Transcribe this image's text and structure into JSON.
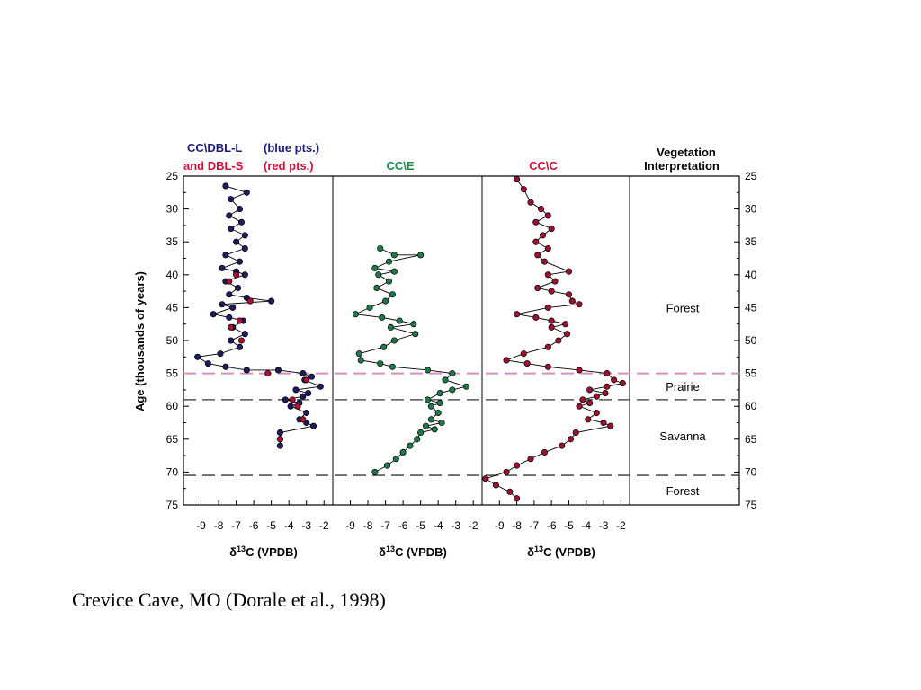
{
  "caption": "Crevice Cave, MO (Dorale et al., 1998)",
  "colors": {
    "blue_series": "#1c1c5e",
    "red_series": "#b01030",
    "green_series": "#1e7a4a",
    "crimson_series": "#9c1030",
    "pink_boundary": "#d890c0",
    "dashed_boundary": "#555555",
    "green_title": "#15904a",
    "red_title": "#d0103a",
    "blue_title": "#1a1a7a"
  },
  "header": {
    "panel1_line1": "CC\\DBL-L",
    "panel1_line1_note": "(blue pts.)",
    "panel1_line2": "and DBL-S",
    "panel1_line2_note": "(red pts.)",
    "panel2": "CC\\E",
    "panel3": "CC\\C",
    "veg_line1": "Vegetation",
    "veg_line2": "Interpretation"
  },
  "axis": {
    "y_label": "Age (thousands of years)",
    "x_label_prefix": "δ",
    "x_label_sup": "13",
    "x_label_suffix": "C (VPDB)"
  },
  "chart_data": {
    "type": "scatter",
    "ylim": [
      25,
      75
    ],
    "y_inverted": true,
    "xlim": [
      -10,
      -1.5
    ],
    "x_ticks": [
      -9,
      -8,
      -7,
      -6,
      -5,
      -4,
      -3,
      -2
    ],
    "y_ticks": [
      25,
      30,
      35,
      40,
      45,
      50,
      55,
      60,
      65,
      70,
      75
    ],
    "boundaries": [
      {
        "age": 55,
        "style": "pink-dashed"
      },
      {
        "age": 59,
        "style": "gray-dashed"
      },
      {
        "age": 70.5,
        "style": "gray-dashed"
      }
    ],
    "vegetation_zones": [
      {
        "label": "Forest",
        "age": 45
      },
      {
        "label": "Prairie",
        "age": 57
      },
      {
        "label": "Savanna",
        "age": 64.5
      },
      {
        "label": "Forest",
        "age": 72.8
      }
    ],
    "panels": [
      {
        "series": [
          {
            "color_key": "blue_series",
            "points": [
              [
                -7.6,
                26.5
              ],
              [
                -6.4,
                27.5
              ],
              [
                -7.3,
                28.5
              ],
              [
                -6.8,
                30
              ],
              [
                -7.4,
                31
              ],
              [
                -6.7,
                32
              ],
              [
                -7.3,
                33
              ],
              [
                -6.5,
                34
              ],
              [
                -7.0,
                35
              ],
              [
                -6.5,
                36
              ],
              [
                -7.6,
                37
              ],
              [
                -6.8,
                38
              ],
              [
                -7.8,
                39
              ],
              [
                -7.0,
                39.5
              ],
              [
                -6.5,
                40
              ],
              [
                -7.6,
                41
              ],
              [
                -6.9,
                42
              ],
              [
                -7.4,
                43
              ],
              [
                -6.4,
                43.5
              ],
              [
                -5.0,
                44
              ],
              [
                -7.8,
                44.5
              ],
              [
                -7.2,
                45
              ],
              [
                -8.3,
                46
              ],
              [
                -7.4,
                46.5
              ],
              [
                -6.6,
                47
              ],
              [
                -7.2,
                48
              ],
              [
                -6.5,
                49
              ],
              [
                -7.3,
                50
              ],
              [
                -6.8,
                51
              ],
              [
                -7.9,
                52
              ],
              [
                -9.2,
                52.5
              ],
              [
                -8.6,
                53.5
              ],
              [
                -7.6,
                54
              ],
              [
                -6.4,
                54.5
              ],
              [
                -4.6,
                54.5
              ],
              [
                -3.2,
                55
              ],
              [
                -2.7,
                55.5
              ],
              [
                -3.1,
                56
              ],
              [
                -2.2,
                57
              ],
              [
                -3.6,
                57.5
              ],
              [
                -2.9,
                58
              ],
              [
                -3.2,
                58.5
              ],
              [
                -4.2,
                59
              ],
              [
                -3.4,
                59.5
              ],
              [
                -3.9,
                60
              ],
              [
                -3.0,
                61
              ],
              [
                -3.4,
                62
              ],
              [
                -3.0,
                62.5
              ],
              [
                -2.6,
                63
              ],
              [
                -4.5,
                64
              ],
              [
                -4.5,
                65
              ],
              [
                -4.5,
                66
              ]
            ]
          },
          {
            "color_key": "red_series",
            "points": [
              [
                -7.0,
                40
              ],
              [
                -7.4,
                41
              ],
              [
                -6.8,
                47
              ],
              [
                -6.2,
                44
              ],
              [
                -7.3,
                48
              ],
              [
                -6.7,
                50
              ],
              [
                -5.2,
                55
              ],
              [
                -3.0,
                56
              ],
              [
                -3.8,
                59
              ],
              [
                -3.5,
                60
              ],
              [
                -3.2,
                62
              ],
              [
                -4.5,
                65
              ]
            ]
          }
        ]
      },
      {
        "series": [
          {
            "color_key": "green_series",
            "points": [
              [
                -7.3,
                36
              ],
              [
                -6.5,
                37
              ],
              [
                -5.0,
                37
              ],
              [
                -6.8,
                38
              ],
              [
                -7.6,
                39
              ],
              [
                -6.5,
                39.5
              ],
              [
                -7.4,
                40
              ],
              [
                -6.8,
                41
              ],
              [
                -7.5,
                42
              ],
              [
                -6.6,
                43
              ],
              [
                -7.0,
                44
              ],
              [
                -7.9,
                45
              ],
              [
                -8.7,
                46
              ],
              [
                -7.2,
                46.5
              ],
              [
                -6.2,
                47
              ],
              [
                -5.4,
                47.5
              ],
              [
                -6.7,
                48
              ],
              [
                -5.3,
                49
              ],
              [
                -6.5,
                50
              ],
              [
                -7.1,
                51
              ],
              [
                -8.5,
                52
              ],
              [
                -8.4,
                53
              ],
              [
                -7.3,
                53.5
              ],
              [
                -6.6,
                54
              ],
              [
                -4.6,
                54.5
              ],
              [
                -3.2,
                55
              ],
              [
                -3.6,
                56
              ],
              [
                -2.4,
                57
              ],
              [
                -3.2,
                57.5
              ],
              [
                -3.9,
                58
              ],
              [
                -4.6,
                59
              ],
              [
                -3.9,
                59.5
              ],
              [
                -4.4,
                60
              ],
              [
                -4.0,
                61
              ],
              [
                -4.4,
                62
              ],
              [
                -3.8,
                62.5
              ],
              [
                -4.7,
                63
              ],
              [
                -4.2,
                63.5
              ],
              [
                -5.0,
                64
              ],
              [
                -5.2,
                65
              ],
              [
                -5.6,
                66
              ],
              [
                -6.0,
                67
              ],
              [
                -6.4,
                68
              ],
              [
                -6.9,
                69
              ],
              [
                -7.6,
                70
              ]
            ]
          }
        ]
      },
      {
        "series": [
          {
            "color_key": "crimson_series",
            "points": [
              [
                -8.0,
                25.5
              ],
              [
                -7.6,
                27
              ],
              [
                -7.2,
                29
              ],
              [
                -6.6,
                30
              ],
              [
                -6.2,
                31
              ],
              [
                -6.9,
                32
              ],
              [
                -6.0,
                33
              ],
              [
                -6.5,
                34
              ],
              [
                -6.9,
                35
              ],
              [
                -6.2,
                36
              ],
              [
                -6.8,
                37
              ],
              [
                -6.4,
                38
              ],
              [
                -5.0,
                39.5
              ],
              [
                -6.2,
                40
              ],
              [
                -5.8,
                41
              ],
              [
                -6.8,
                42
              ],
              [
                -6.0,
                42.5
              ],
              [
                -5.0,
                43
              ],
              [
                -4.8,
                44
              ],
              [
                -4.4,
                44.5
              ],
              [
                -6.2,
                45
              ],
              [
                -8.0,
                46
              ],
              [
                -6.9,
                46.5
              ],
              [
                -6.0,
                47
              ],
              [
                -5.2,
                47.5
              ],
              [
                -6.0,
                48
              ],
              [
                -5.1,
                49
              ],
              [
                -5.6,
                50
              ],
              [
                -6.2,
                51
              ],
              [
                -7.6,
                52
              ],
              [
                -8.6,
                53
              ],
              [
                -7.4,
                53.5
              ],
              [
                -6.2,
                54
              ],
              [
                -4.4,
                54.5
              ],
              [
                -2.8,
                55
              ],
              [
                -2.4,
                56
              ],
              [
                -1.9,
                56.5
              ],
              [
                -2.8,
                57
              ],
              [
                -3.8,
                57.5
              ],
              [
                -2.9,
                58
              ],
              [
                -3.4,
                58.5
              ],
              [
                -4.2,
                59
              ],
              [
                -3.8,
                59.5
              ],
              [
                -4.4,
                60
              ],
              [
                -3.4,
                61
              ],
              [
                -3.9,
                62
              ],
              [
                -3.0,
                62.5
              ],
              [
                -2.6,
                63
              ],
              [
                -4.6,
                64
              ],
              [
                -4.9,
                65
              ],
              [
                -5.4,
                66
              ],
              [
                -6.4,
                67
              ],
              [
                -7.2,
                68
              ],
              [
                -8.0,
                69
              ],
              [
                -8.6,
                70
              ],
              [
                -9.8,
                71
              ],
              [
                -9.2,
                72
              ],
              [
                -8.4,
                73
              ],
              [
                -8.0,
                74
              ]
            ]
          }
        ]
      }
    ]
  }
}
